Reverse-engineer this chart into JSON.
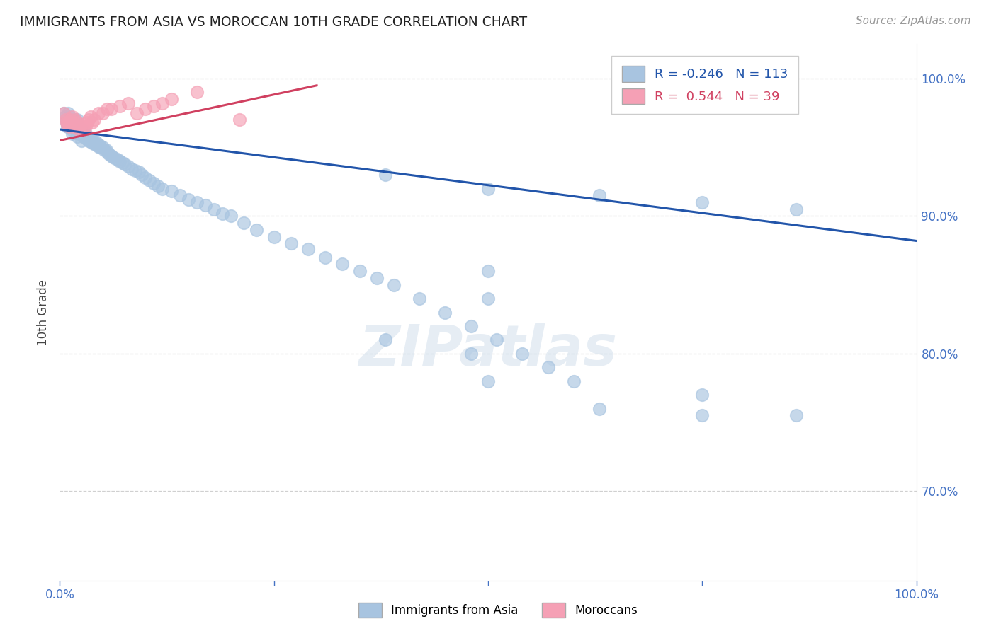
{
  "title": "IMMIGRANTS FROM ASIA VS MOROCCAN 10TH GRADE CORRELATION CHART",
  "source": "Source: ZipAtlas.com",
  "ylabel": "10th Grade",
  "ylabel_right_ticks": [
    0.7,
    0.8,
    0.9,
    1.0
  ],
  "ylabel_right_labels": [
    "70.0%",
    "80.0%",
    "90.0%",
    "100.0%"
  ],
  "xlim": [
    0.0,
    1.0
  ],
  "ylim": [
    0.635,
    1.025
  ],
  "blue_R": -0.246,
  "blue_N": 113,
  "pink_R": 0.544,
  "pink_N": 39,
  "blue_color": "#a8c4e0",
  "blue_line_color": "#2255aa",
  "pink_color": "#f5a0b5",
  "pink_line_color": "#d04060",
  "background_color": "#ffffff",
  "watermark": "ZIPatlas",
  "blue_scatter_x": [
    0.005,
    0.006,
    0.007,
    0.008,
    0.009,
    0.01,
    0.01,
    0.011,
    0.012,
    0.013,
    0.014,
    0.015,
    0.015,
    0.016,
    0.017,
    0.018,
    0.018,
    0.019,
    0.02,
    0.02,
    0.021,
    0.022,
    0.023,
    0.024,
    0.025,
    0.026,
    0.027,
    0.028,
    0.029,
    0.03,
    0.031,
    0.032,
    0.033,
    0.034,
    0.035,
    0.036,
    0.037,
    0.038,
    0.039,
    0.04,
    0.041,
    0.042,
    0.043,
    0.044,
    0.045,
    0.046,
    0.047,
    0.048,
    0.05,
    0.052,
    0.054,
    0.056,
    0.058,
    0.06,
    0.062,
    0.065,
    0.068,
    0.07,
    0.073,
    0.076,
    0.08,
    0.084,
    0.088,
    0.092,
    0.096,
    0.1,
    0.105,
    0.11,
    0.115,
    0.12,
    0.13,
    0.14,
    0.15,
    0.16,
    0.17,
    0.18,
    0.19,
    0.2,
    0.215,
    0.23,
    0.25,
    0.27,
    0.29,
    0.31,
    0.33,
    0.35,
    0.37,
    0.39,
    0.42,
    0.45,
    0.48,
    0.51,
    0.54,
    0.57,
    0.6,
    0.01,
    0.015,
    0.02,
    0.025,
    0.38,
    0.5,
    0.63,
    0.75,
    0.86,
    0.5,
    0.5,
    0.38,
    0.75,
    0.48,
    0.5,
    0.63,
    0.75,
    0.86
  ],
  "blue_scatter_y": [
    0.975,
    0.972,
    0.97,
    0.968,
    0.965,
    0.975,
    0.968,
    0.972,
    0.968,
    0.965,
    0.963,
    0.97,
    0.965,
    0.968,
    0.965,
    0.97,
    0.963,
    0.968,
    0.97,
    0.963,
    0.965,
    0.963,
    0.96,
    0.96,
    0.963,
    0.96,
    0.958,
    0.962,
    0.958,
    0.96,
    0.958,
    0.956,
    0.958,
    0.955,
    0.956,
    0.954,
    0.955,
    0.953,
    0.954,
    0.953,
    0.952,
    0.954,
    0.952,
    0.951,
    0.952,
    0.95,
    0.951,
    0.95,
    0.95,
    0.948,
    0.948,
    0.946,
    0.945,
    0.944,
    0.943,
    0.942,
    0.941,
    0.94,
    0.939,
    0.938,
    0.936,
    0.934,
    0.933,
    0.932,
    0.93,
    0.928,
    0.926,
    0.924,
    0.922,
    0.92,
    0.918,
    0.915,
    0.912,
    0.91,
    0.908,
    0.905,
    0.902,
    0.9,
    0.895,
    0.89,
    0.885,
    0.88,
    0.876,
    0.87,
    0.865,
    0.86,
    0.855,
    0.85,
    0.84,
    0.83,
    0.82,
    0.81,
    0.8,
    0.79,
    0.78,
    0.965,
    0.96,
    0.958,
    0.955,
    0.93,
    0.92,
    0.915,
    0.91,
    0.905,
    0.86,
    0.84,
    0.81,
    0.77,
    0.8,
    0.78,
    0.76,
    0.755,
    0.755
  ],
  "pink_scatter_x": [
    0.005,
    0.007,
    0.008,
    0.009,
    0.01,
    0.011,
    0.012,
    0.013,
    0.014,
    0.015,
    0.016,
    0.017,
    0.018,
    0.019,
    0.02,
    0.021,
    0.022,
    0.024,
    0.026,
    0.028,
    0.03,
    0.032,
    0.034,
    0.036,
    0.038,
    0.04,
    0.045,
    0.05,
    0.055,
    0.06,
    0.07,
    0.08,
    0.09,
    0.1,
    0.11,
    0.12,
    0.13,
    0.16,
    0.21
  ],
  "pink_scatter_y": [
    0.975,
    0.97,
    0.968,
    0.966,
    0.968,
    0.965,
    0.97,
    0.968,
    0.966,
    0.972,
    0.965,
    0.968,
    0.97,
    0.965,
    0.968,
    0.965,
    0.963,
    0.965,
    0.963,
    0.965,
    0.965,
    0.968,
    0.97,
    0.972,
    0.968,
    0.97,
    0.975,
    0.975,
    0.978,
    0.978,
    0.98,
    0.982,
    0.975,
    0.978,
    0.98,
    0.982,
    0.985,
    0.99,
    0.97
  ],
  "blue_trend_x": [
    0.0,
    1.0
  ],
  "blue_trend_y": [
    0.963,
    0.882
  ],
  "pink_trend_x": [
    0.0,
    0.3
  ],
  "pink_trend_y": [
    0.955,
    0.995
  ]
}
